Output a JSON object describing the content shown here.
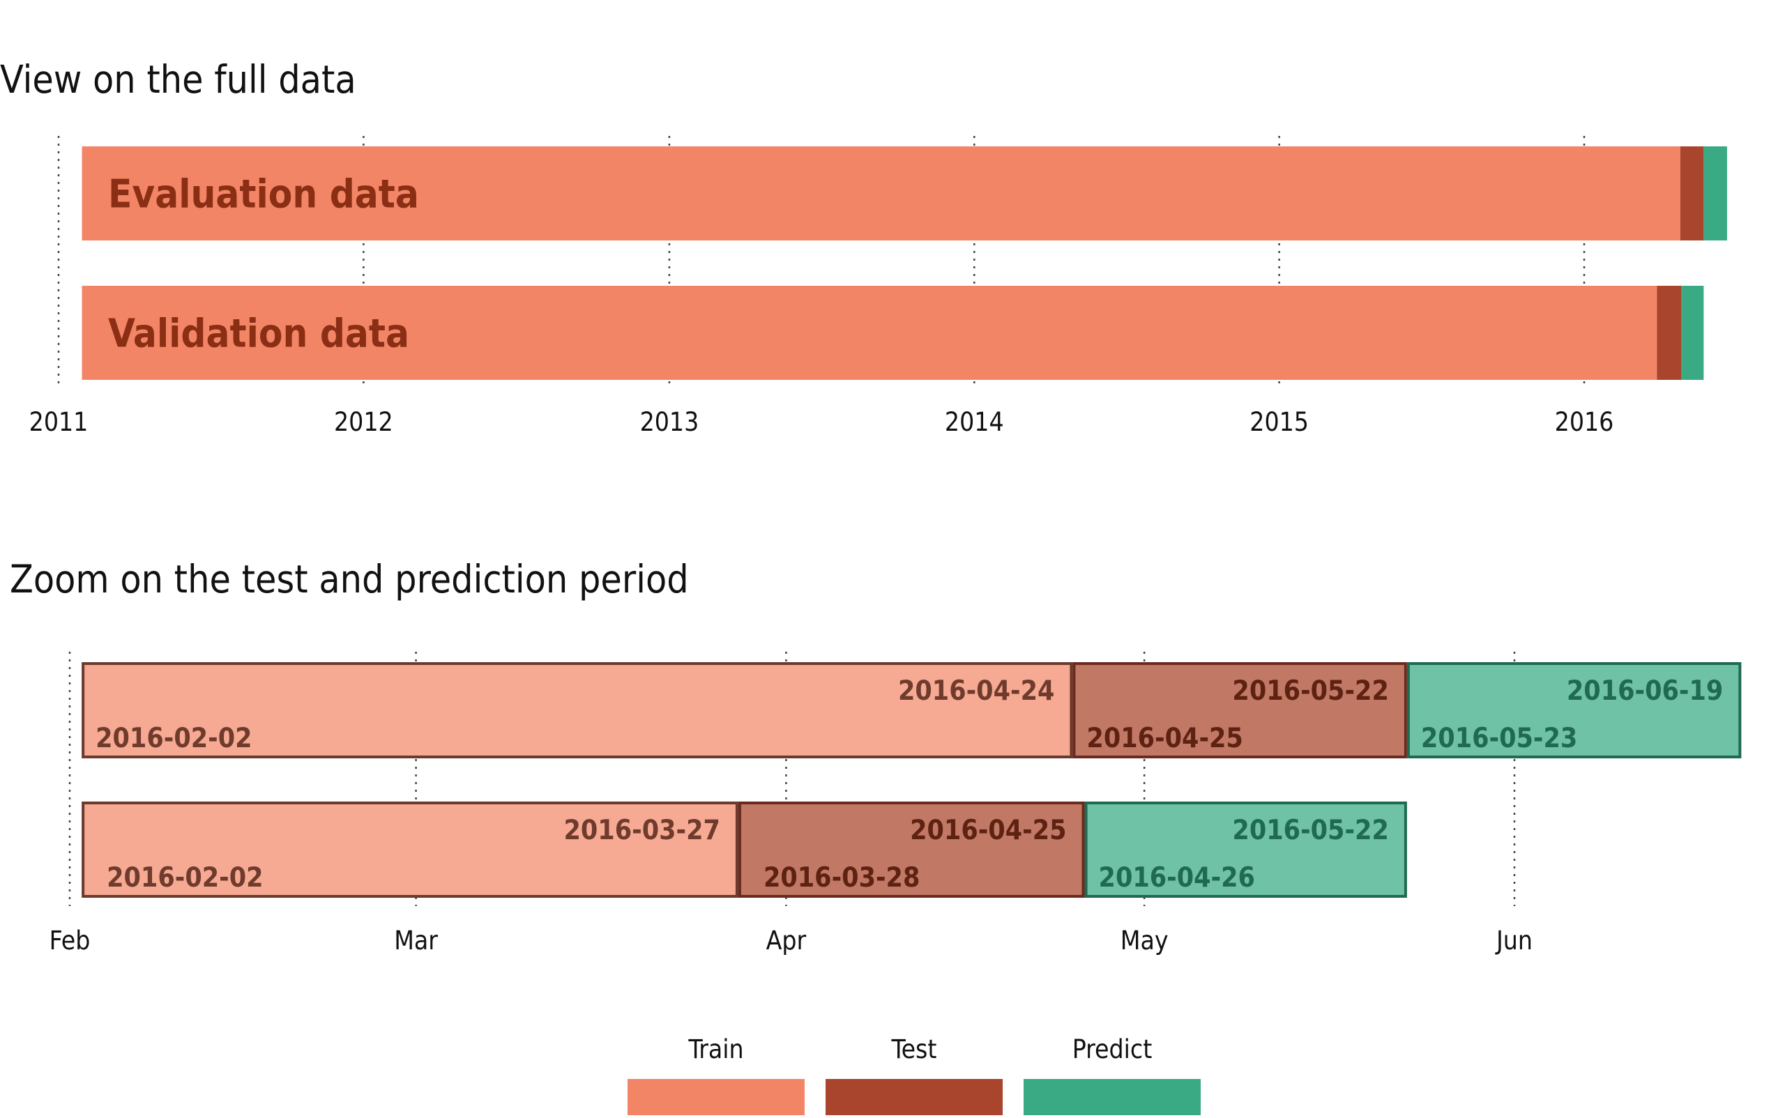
{
  "chart_data": [
    {
      "type": "bar",
      "title": "View on the full data",
      "x_type": "date",
      "xlim": [
        "2011-01-01",
        "2016-07-01"
      ],
      "x_ticks": [
        "2011",
        "2012",
        "2013",
        "2014",
        "2015",
        "2016"
      ],
      "grid": "vertical dotted lines at year ticks",
      "rows": [
        {
          "label": "Evaluation data",
          "segments": [
            {
              "kind": "Train",
              "start": "2011-01-29",
              "end": "2016-04-24"
            },
            {
              "kind": "Test",
              "start": "2016-04-25",
              "end": "2016-05-22"
            },
            {
              "kind": "Predict",
              "start": "2016-05-23",
              "end": "2016-06-19"
            }
          ]
        },
        {
          "label": "Validation data",
          "segments": [
            {
              "kind": "Train",
              "start": "2011-01-29",
              "end": "2016-03-27"
            },
            {
              "kind": "Test",
              "start": "2016-03-28",
              "end": "2016-04-25"
            },
            {
              "kind": "Predict",
              "start": "2016-04-26",
              "end": "2016-05-22"
            }
          ]
        }
      ]
    },
    {
      "type": "bar",
      "title": "Zoom on the test and prediction period",
      "x_type": "date",
      "xlim": [
        "2016-02-01",
        "2016-06-21"
      ],
      "x_ticks": [
        {
          "label": "Feb",
          "date": "2016-02-01"
        },
        {
          "label": "Mar",
          "date": "2016-03-01"
        },
        {
          "label": "Apr",
          "date": "2016-04-01"
        },
        {
          "label": "May",
          "date": "2016-05-01"
        },
        {
          "label": "Jun",
          "date": "2016-06-01"
        }
      ],
      "grid": "vertical dotted lines at month ticks",
      "rows": [
        {
          "segments": [
            {
              "kind": "Train",
              "start": "2016-02-02",
              "end": "2016-04-24",
              "start_label": "2016-02-02",
              "end_label": "2016-04-24"
            },
            {
              "kind": "Test",
              "start": "2016-04-25",
              "end": "2016-05-22",
              "start_label": "2016-04-25",
              "end_label": "2016-05-22"
            },
            {
              "kind": "Predict",
              "start": "2016-05-23",
              "end": "2016-06-19",
              "start_label": "2016-05-23",
              "end_label": "2016-06-19"
            }
          ]
        },
        {
          "segments": [
            {
              "kind": "Train",
              "start": "2016-02-02",
              "end": "2016-03-27",
              "start_label": "2016-02-02",
              "end_label": "2016-03-27"
            },
            {
              "kind": "Test",
              "start": "2016-03-28",
              "end": "2016-04-25",
              "start_label": "2016-03-28",
              "end_label": "2016-04-25"
            },
            {
              "kind": "Predict",
              "start": "2016-04-26",
              "end": "2016-05-22",
              "start_label": "2016-04-26",
              "end_label": "2016-05-22"
            }
          ]
        }
      ]
    }
  ],
  "legend": {
    "placement": "bottom-center",
    "items": [
      {
        "label": "Train",
        "color": "#f38567"
      },
      {
        "label": "Test",
        "color": "#a8452c"
      },
      {
        "label": "Predict",
        "color": "#3aaa85"
      }
    ]
  },
  "colors": {
    "train": "#f38567",
    "test": "#a8452c",
    "predict": "#3aaa85",
    "train_zoom_fill": "#f6a993",
    "test_zoom_fill": "#c17865",
    "predict_zoom_fill": "#6fc2a6",
    "train_outline": "#6b3a2d",
    "test_outline": "#6b2a1e",
    "predict_outline": "#1f6a50",
    "label_dark_red": "#8a2e14",
    "train_label": "#6e3b2c",
    "test_label": "#5e2212",
    "predict_label": "#1f6a50"
  }
}
